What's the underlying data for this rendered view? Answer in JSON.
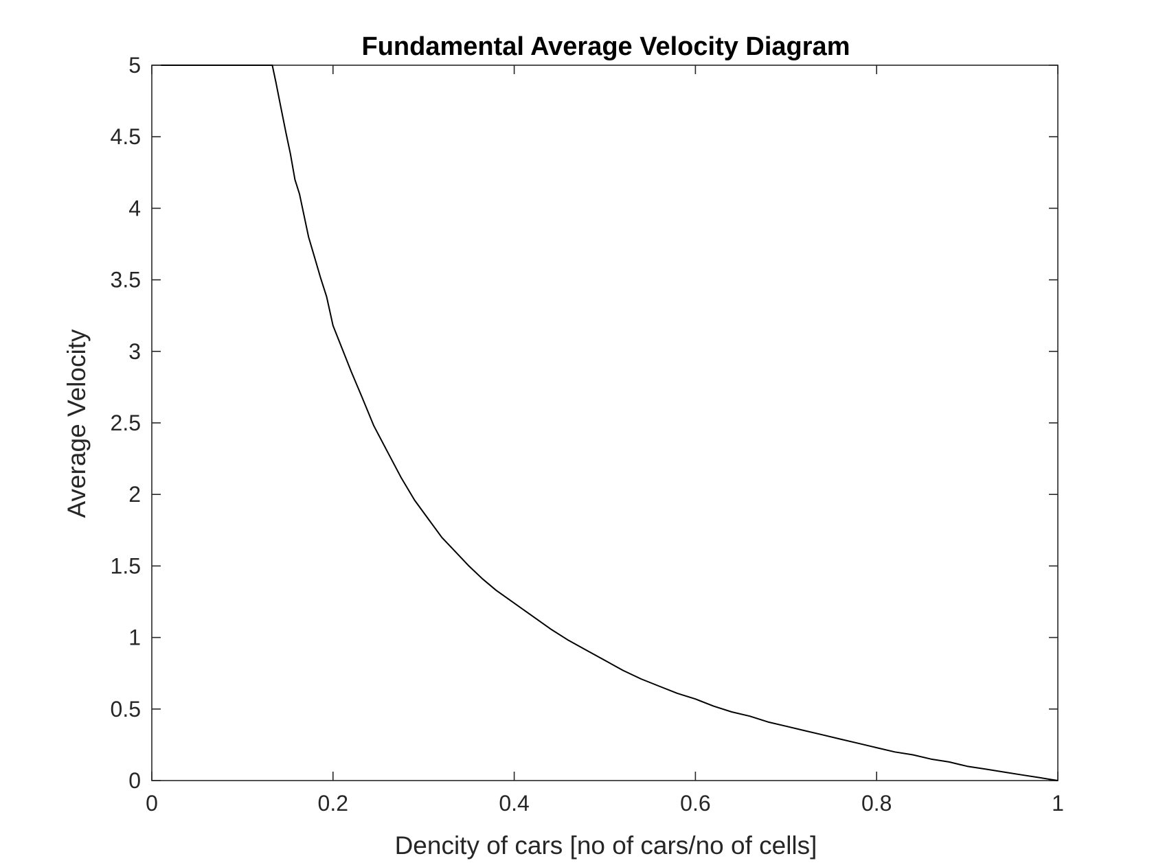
{
  "chart_data": {
    "type": "line",
    "title": "Fundamental Average Velocity Diagram",
    "xlabel": "Dencity of cars [no of cars/no of cells]",
    "ylabel": "Average Velocity",
    "xlim": [
      0,
      1
    ],
    "ylim": [
      0,
      5
    ],
    "xticks": [
      0,
      0.2,
      0.4,
      0.6,
      0.8,
      1
    ],
    "xtick_labels": [
      "0",
      "0.2",
      "0.4",
      "0.6",
      "0.8",
      "1"
    ],
    "yticks": [
      0,
      0.5,
      1,
      1.5,
      2,
      2.5,
      3,
      3.5,
      4,
      4.5,
      5
    ],
    "ytick_labels": [
      "0",
      "0.5",
      "1",
      "1.5",
      "2",
      "2.5",
      "3",
      "3.5",
      "4",
      "4.5",
      "5"
    ],
    "grid": false,
    "line_color": "#000000",
    "axis_color": "#262626",
    "series": [
      {
        "x": [
          0.01,
          0.133,
          0.137,
          0.142,
          0.148,
          0.153,
          0.158,
          0.163,
          0.168,
          0.173,
          0.18,
          0.186,
          0.193,
          0.2,
          0.21,
          0.22,
          0.232,
          0.245,
          0.26,
          0.275,
          0.29,
          0.305,
          0.32,
          0.335,
          0.35,
          0.365,
          0.38,
          0.4,
          0.42,
          0.44,
          0.46,
          0.48,
          0.5,
          0.52,
          0.54,
          0.56,
          0.58,
          0.6,
          0.62,
          0.64,
          0.66,
          0.68,
          0.7,
          0.72,
          0.74,
          0.76,
          0.78,
          0.8,
          0.82,
          0.84,
          0.86,
          0.88,
          0.9,
          0.92,
          0.94,
          0.96,
          0.98,
          1.0
        ],
        "y": [
          5.0,
          5.0,
          4.88,
          4.72,
          4.53,
          4.38,
          4.2,
          4.1,
          3.95,
          3.8,
          3.65,
          3.52,
          3.38,
          3.18,
          3.02,
          2.86,
          2.68,
          2.48,
          2.3,
          2.12,
          1.96,
          1.83,
          1.7,
          1.6,
          1.5,
          1.41,
          1.33,
          1.24,
          1.15,
          1.06,
          0.98,
          0.91,
          0.84,
          0.77,
          0.71,
          0.66,
          0.61,
          0.57,
          0.52,
          0.48,
          0.45,
          0.41,
          0.38,
          0.35,
          0.32,
          0.29,
          0.26,
          0.23,
          0.2,
          0.18,
          0.15,
          0.13,
          0.1,
          0.08,
          0.06,
          0.04,
          0.02,
          0.0
        ]
      }
    ]
  }
}
